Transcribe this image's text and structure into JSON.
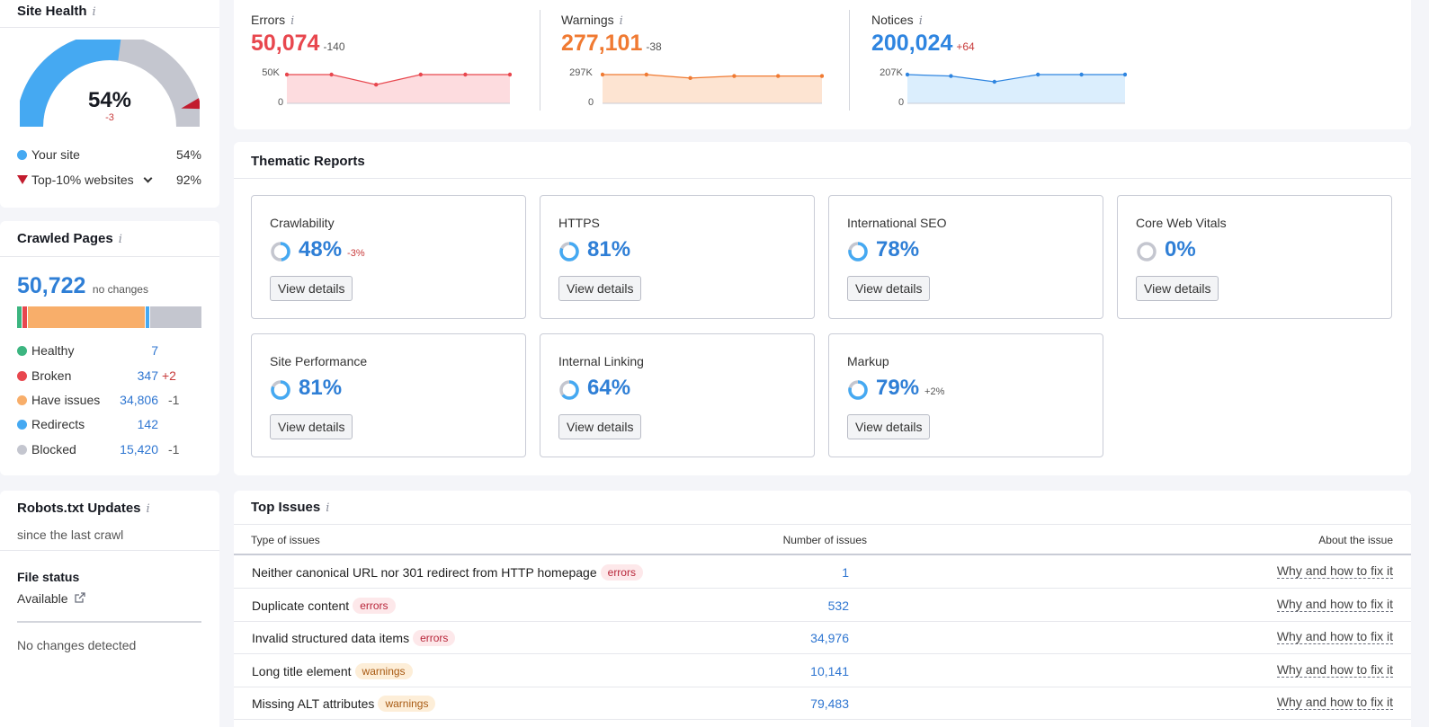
{
  "site_health": {
    "title": "Site Health",
    "percent": "54%",
    "change": "-3",
    "value_fraction": 0.54,
    "top10_fraction": 0.92,
    "legend": [
      {
        "label": "Your site",
        "value": "54%"
      },
      {
        "label": "Top-10% websites",
        "value": "92%"
      }
    ]
  },
  "crawled": {
    "title": "Crawled Pages",
    "total": "50,722",
    "total_note": "no changes",
    "rows": [
      {
        "label": "Healthy",
        "value": "7",
        "change": "",
        "color": "#3cb580"
      },
      {
        "label": "Broken",
        "value": "347",
        "change": "+2",
        "color": "#e8474e"
      },
      {
        "label": "Have issues",
        "value": "34,806",
        "change": "-1",
        "color": "#f8ae6a"
      },
      {
        "label": "Redirects",
        "value": "142",
        "change": "",
        "color": "#45a9f2"
      },
      {
        "label": "Blocked",
        "value": "15,420",
        "change": "-1",
        "color": "#c4c6cf"
      }
    ]
  },
  "robots": {
    "title": "Robots.txt Updates",
    "subtitle": "since the last crawl",
    "file_status_label": "File status",
    "file_status_value": "Available",
    "no_changes": "No changes detected"
  },
  "metrics": [
    {
      "label": "Errors",
      "value": "50,074",
      "change": "-140",
      "ymax": "50K",
      "ymin": "0",
      "color": "#e8474e"
    },
    {
      "label": "Warnings",
      "value": "277,101",
      "change": "-38",
      "ymax": "297K",
      "ymin": "0",
      "color": "#f07a32"
    },
    {
      "label": "Notices",
      "value": "200,024",
      "change": "+64",
      "ymax": "207K",
      "ymin": "0",
      "color": "#2f85e0"
    }
  ],
  "thematic": {
    "title": "Thematic Reports",
    "button_label": "View details",
    "items": [
      {
        "name": "Crawlability",
        "value": "48%",
        "change": "-3%"
      },
      {
        "name": "HTTPS",
        "value": "81%",
        "change": ""
      },
      {
        "name": "International SEO",
        "value": "78%",
        "change": ""
      },
      {
        "name": "Core Web Vitals",
        "value": "0%",
        "change": ""
      },
      {
        "name": "Site Performance",
        "value": "81%",
        "change": ""
      },
      {
        "name": "Internal Linking",
        "value": "64%",
        "change": ""
      },
      {
        "name": "Markup",
        "value": "79%",
        "change": "+2%"
      }
    ]
  },
  "issues": {
    "title": "Top Issues",
    "col_type": "Type of issues",
    "col_count": "Number of issues",
    "col_about": "About the issue",
    "link_label": "Why and how to fix it",
    "rows": [
      {
        "name": "Neither canonical URL nor 301 redirect from HTTP homepage",
        "tag": "errors",
        "count": "1"
      },
      {
        "name": "Duplicate content",
        "tag": "errors",
        "count": "532"
      },
      {
        "name": "Invalid structured data items",
        "tag": "errors",
        "count": "34,976"
      },
      {
        "name": "Long title element",
        "tag": "warnings",
        "count": "10,141"
      },
      {
        "name": "Missing ALT attributes",
        "tag": "warnings",
        "count": "79,483"
      }
    ]
  }
}
